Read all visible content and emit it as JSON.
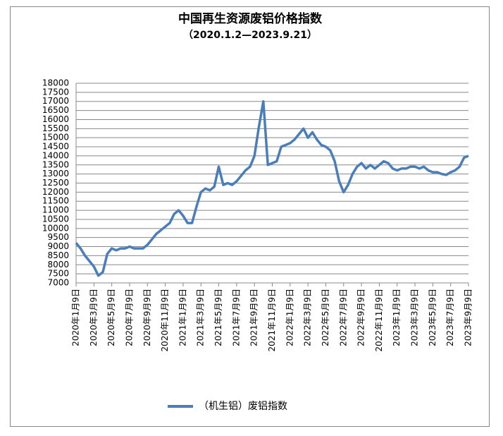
{
  "chart_data": {
    "type": "line",
    "title": "中国再生资源废铝价格指数",
    "subtitle": "（2020.1.2—2023.9.21）",
    "categories": [
      "2020年1月9日",
      null,
      null,
      null,
      "2020年3月9日",
      null,
      null,
      null,
      "2020年5月9日",
      null,
      null,
      null,
      "2020年7月9日",
      null,
      null,
      null,
      "2020年9月9日",
      null,
      null,
      null,
      "2020年11月9日",
      null,
      null,
      null,
      "2021年1月9日",
      null,
      null,
      null,
      "2021年3月9日",
      null,
      null,
      null,
      "2021年5月9日",
      null,
      null,
      null,
      "2021年7月9日",
      null,
      null,
      null,
      "2021年9月9日",
      null,
      null,
      null,
      "2021年11月9日",
      null,
      null,
      null,
      "2022年1月9日",
      null,
      null,
      null,
      "2022年3月9日",
      null,
      null,
      null,
      "2022年5月9日",
      null,
      null,
      null,
      "2022年7月9日",
      null,
      null,
      null,
      "2022年9月9日",
      null,
      null,
      null,
      "2022年11月9日",
      null,
      null,
      null,
      "2023年1月9日",
      null,
      null,
      null,
      "2023年3月9日",
      null,
      null,
      null,
      "2023年5月9日",
      null,
      null,
      null,
      "2023年7月9日",
      null,
      null,
      null,
      "2023年9月9日"
    ],
    "series": [
      {
        "name": "（机生铝）废铝指数",
        "color": "#4a7ebb",
        "values": [
          9200,
          8900,
          8500,
          8200,
          7900,
          7400,
          7600,
          8600,
          8900,
          8800,
          8900,
          8900,
          9000,
          8900,
          8900,
          8900,
          9100,
          9400,
          9700,
          9900,
          10100,
          10300,
          10800,
          11000,
          10700,
          10300,
          10300,
          11200,
          12000,
          12200,
          12100,
          12300,
          13400,
          12400,
          12500,
          12400,
          12600,
          12900,
          13200,
          13400,
          14000,
          15600,
          17000,
          13500,
          13600,
          13700,
          14500,
          14600,
          14700,
          14900,
          15200,
          15500,
          15000,
          15300,
          14900,
          14600,
          14500,
          14300,
          13700,
          12600,
          12000,
          12400,
          13000,
          13400,
          13600,
          13300,
          13500,
          13300,
          13500,
          13700,
          13600,
          13300,
          13200,
          13300,
          13300,
          13400,
          13400,
          13300,
          13400,
          13200,
          13100,
          13100,
          13000,
          12950,
          13100,
          13200,
          13400,
          13900,
          14000
        ]
      }
    ],
    "ylim": [
      7000,
      18000
    ],
    "yticks": [
      7000,
      7500,
      8000,
      8500,
      9000,
      9500,
      10000,
      10500,
      11000,
      11500,
      12000,
      12500,
      13000,
      13500,
      14000,
      14500,
      15000,
      15500,
      16000,
      16500,
      17000,
      17500,
      18000
    ],
    "grid": true
  }
}
